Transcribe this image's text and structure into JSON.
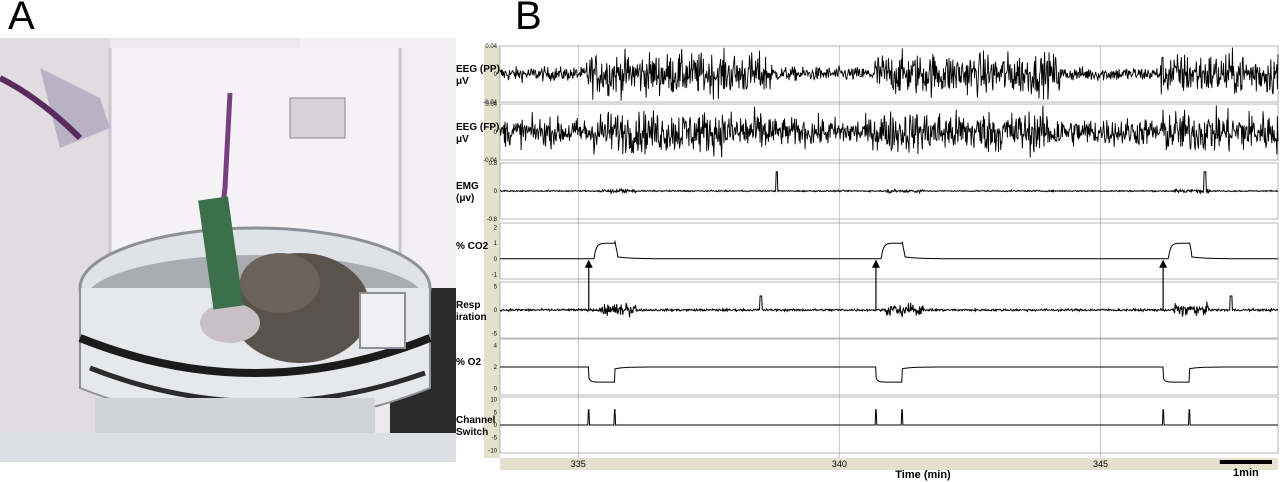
{
  "panels": {
    "a": "A",
    "b": "B"
  },
  "colors": {
    "trace": "#000000",
    "grid": "#c8c8c8",
    "axis_strip": "#e6e1cf",
    "photo_bg": "#e8e6e9"
  },
  "chart_data": {
    "type": "line",
    "xlabel": "Time (min)",
    "x_range": [
      333.5,
      348.4
    ],
    "x_ticks": [
      "335",
      "340",
      "345"
    ],
    "x_tick_values": [
      335,
      340,
      345
    ],
    "scale_bar": {
      "label": "1min",
      "minutes": 1
    },
    "co2_stimulus_onsets_min": [
      335.2,
      340.7,
      346.2
    ],
    "channels": [
      {
        "label1": "EEG (PP)",
        "label2": "μV",
        "ticks": [
          "0.04",
          "0",
          "-0.04"
        ],
        "ylim": [
          -0.04,
          0.04
        ],
        "shape": "eeg",
        "baseline": 0,
        "amp_awake": 0.036,
        "amp_sleep": 0.012
      },
      {
        "label1": "EEG (FP)",
        "label2": "μV",
        "ticks": [
          "0.04",
          "0",
          "-0.04"
        ],
        "ylim": [
          -0.04,
          0.04
        ],
        "shape": "eeg",
        "baseline": 0,
        "amp_awake": 0.036,
        "amp_sleep": 0.024
      },
      {
        "label1": "EMG",
        "label2": "(μv)",
        "ticks": [
          "0.8",
          "0",
          "-0.8"
        ],
        "ylim": [
          -0.8,
          0.8
        ],
        "shape": "emg",
        "baseline": 0,
        "spikes_min": [
          338.8,
          347.0
        ]
      },
      {
        "label1": "% CO2",
        "label2": "",
        "ticks": [
          "2",
          "1",
          "0",
          "-1"
        ],
        "ylim": [
          -1.3,
          2.3
        ],
        "shape": "co2",
        "baseline": 0,
        "peak": 1.0,
        "rise_min": [
          335.3,
          340.8,
          346.3
        ],
        "fall_min": [
          335.7,
          341.2,
          346.7
        ]
      },
      {
        "label1": "Resp",
        "label2": "iration",
        "ticks": [
          "5",
          "0",
          "-5"
        ],
        "ylim": [
          -6,
          6
        ],
        "shape": "resp",
        "baseline": 0,
        "bursts_min": [
          335.6,
          341.1,
          346.6
        ],
        "spikes_min": [
          338.5,
          347.5
        ]
      },
      {
        "label1": "% O2",
        "label2": "",
        "ticks": [
          "4",
          "2",
          "0"
        ],
        "ylim": [
          -0.6,
          4.6
        ],
        "shape": "o2",
        "baseline": 2.0,
        "dip": 0.6,
        "dip_min": [
          335.2,
          340.7,
          346.2
        ],
        "recover_min": [
          335.7,
          341.2,
          346.7
        ]
      },
      {
        "label1": "Channel",
        "label2": "Switch",
        "ticks": [
          "10",
          "5",
          "0",
          "-5",
          "-10"
        ],
        "ylim": [
          -11,
          11
        ],
        "shape": "switch",
        "baseline": 0,
        "height": 6,
        "events_min": [
          335.2,
          335.7,
          340.7,
          341.2,
          346.2,
          346.7
        ]
      }
    ]
  }
}
